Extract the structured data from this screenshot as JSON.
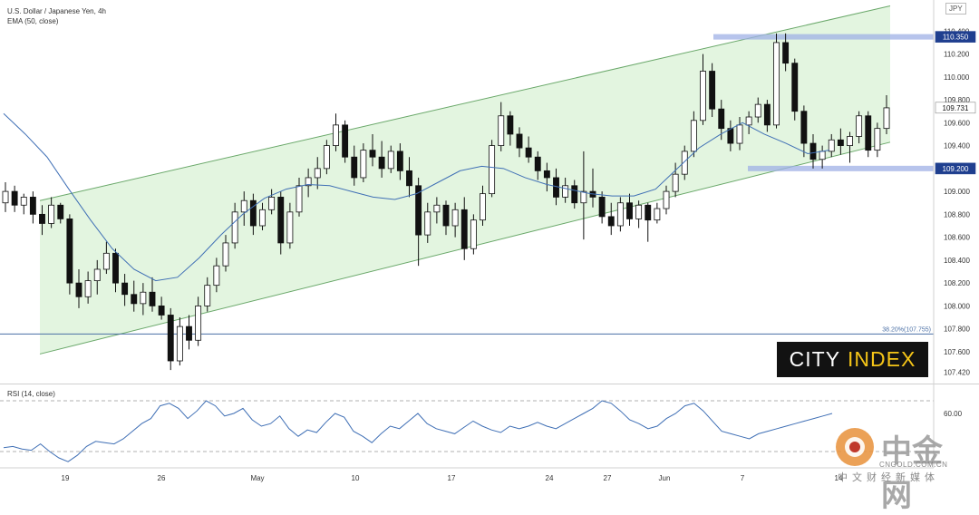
{
  "chart_data": {
    "type": "candlestick",
    "title": "U.S. Dollar / Japanese Yen, 4h",
    "currency": "JPY",
    "indicator_label": "EMA (50, close)",
    "y_ticks": [
      "110.400",
      "110.200",
      "110.000",
      "109.800",
      "109.600",
      "109.400",
      "109.200",
      "109.000",
      "108.800",
      "108.600",
      "108.400",
      "108.200",
      "108.000",
      "107.800",
      "107.600",
      "107.420"
    ],
    "ylim": [
      107.33,
      110.64
    ],
    "x_ticks": [
      "19",
      "26",
      "May",
      "10",
      "17",
      "24",
      "27",
      "Jun",
      "7",
      "14"
    ],
    "price_markers": [
      {
        "label": "110.350",
        "value": 110.35,
        "style": "blue-box"
      },
      {
        "label": "109.200",
        "value": 109.2,
        "style": "blue-box"
      },
      {
        "label": "109.731",
        "value": 109.731,
        "style": "white-box"
      }
    ],
    "fib_line": {
      "label": "38.20%(107.755)",
      "value": 107.755
    },
    "channel": {
      "upper_start": 108.92,
      "upper_end": 110.62,
      "lower_start": 107.58,
      "lower_end": 109.43,
      "color": "#d9f2d6"
    },
    "support_resistance": [
      110.35,
      109.2
    ],
    "ema_50": [
      109.68,
      109.5,
      109.3,
      109.02,
      108.75,
      108.5,
      108.32,
      108.22,
      108.25,
      108.42,
      108.62,
      108.8,
      108.94,
      109.02,
      109.06,
      109.05,
      109.0,
      108.95,
      108.93,
      108.98,
      109.08,
      109.18,
      109.22,
      109.2,
      109.12,
      109.06,
      109.02,
      108.98,
      108.96,
      108.96,
      109.02,
      109.2,
      109.38,
      109.5,
      109.6,
      109.5,
      109.42,
      109.33,
      109.36
    ],
    "rsi": {
      "label": "RSI (14, close)",
      "ticks": [
        "60.00"
      ],
      "upper": 70,
      "lower": 30,
      "range": [
        20,
        80
      ],
      "values": [
        33,
        34,
        32,
        31,
        36,
        30,
        25,
        22,
        27,
        34,
        38,
        37,
        36,
        40,
        46,
        52,
        56,
        66,
        68,
        64,
        56,
        62,
        70,
        66,
        58,
        60,
        64,
        55,
        50,
        52,
        58,
        48,
        42,
        47,
        45,
        53,
        60,
        57,
        46,
        42,
        37,
        44,
        50,
        48,
        54,
        60,
        52,
        48,
        46,
        44,
        49,
        54,
        50,
        47,
        45,
        50,
        48,
        50,
        53,
        50,
        48,
        52,
        56,
        60,
        64,
        70,
        68,
        62,
        55,
        52,
        48,
        50,
        56,
        60,
        66,
        68,
        62,
        54,
        46,
        44,
        42,
        40,
        44,
        46,
        48,
        50,
        52,
        54,
        56,
        58,
        60
      ]
    },
    "candles": [
      [
        108.9,
        109.08,
        108.82,
        109.0
      ],
      [
        109.0,
        109.05,
        108.82,
        108.88
      ],
      [
        108.88,
        108.98,
        108.8,
        108.95
      ],
      [
        108.95,
        109.0,
        108.72,
        108.8
      ],
      [
        108.8,
        108.88,
        108.62,
        108.72
      ],
      [
        108.72,
        108.95,
        108.68,
        108.88
      ],
      [
        108.88,
        108.9,
        108.72,
        108.76
      ],
      [
        108.76,
        108.8,
        108.1,
        108.2
      ],
      [
        108.2,
        108.32,
        107.98,
        108.08
      ],
      [
        108.08,
        108.3,
        108.02,
        108.22
      ],
      [
        108.22,
        108.4,
        108.1,
        108.32
      ],
      [
        108.32,
        108.56,
        108.28,
        108.46
      ],
      [
        108.46,
        108.5,
        108.12,
        108.2
      ],
      [
        108.2,
        108.28,
        108.0,
        108.1
      ],
      [
        108.1,
        108.22,
        107.95,
        108.02
      ],
      [
        108.02,
        108.2,
        107.92,
        108.12
      ],
      [
        108.12,
        108.25,
        107.95,
        108.0
      ],
      [
        108.0,
        108.08,
        107.88,
        107.92
      ],
      [
        107.92,
        107.98,
        107.44,
        107.52
      ],
      [
        107.52,
        107.9,
        107.48,
        107.82
      ],
      [
        107.82,
        107.92,
        107.62,
        107.7
      ],
      [
        107.7,
        108.08,
        107.65,
        108.0
      ],
      [
        108.0,
        108.25,
        107.95,
        108.18
      ],
      [
        108.18,
        108.42,
        108.12,
        108.35
      ],
      [
        108.35,
        108.62,
        108.3,
        108.55
      ],
      [
        108.55,
        108.9,
        108.5,
        108.82
      ],
      [
        108.82,
        109.0,
        108.7,
        108.92
      ],
      [
        108.92,
        108.98,
        108.62,
        108.7
      ],
      [
        108.7,
        108.9,
        108.66,
        108.84
      ],
      [
        108.84,
        109.02,
        108.8,
        108.95
      ],
      [
        108.95,
        109.0,
        108.45,
        108.55
      ],
      [
        108.55,
        108.9,
        108.5,
        108.82
      ],
      [
        108.82,
        109.12,
        108.78,
        109.05
      ],
      [
        109.05,
        109.2,
        108.95,
        109.12
      ],
      [
        109.12,
        109.3,
        109.02,
        109.2
      ],
      [
        109.2,
        109.45,
        109.15,
        109.4
      ],
      [
        109.4,
        109.68,
        109.35,
        109.58
      ],
      [
        109.58,
        109.62,
        109.25,
        109.3
      ],
      [
        109.3,
        109.4,
        109.05,
        109.12
      ],
      [
        109.12,
        109.42,
        109.08,
        109.36
      ],
      [
        109.36,
        109.5,
        109.22,
        109.3
      ],
      [
        109.3,
        109.44,
        109.12,
        109.2
      ],
      [
        109.2,
        109.4,
        109.16,
        109.35
      ],
      [
        109.35,
        109.42,
        109.1,
        109.18
      ],
      [
        109.18,
        109.3,
        108.95,
        109.05
      ],
      [
        109.05,
        109.12,
        108.35,
        108.62
      ],
      [
        108.62,
        108.9,
        108.55,
        108.82
      ],
      [
        108.82,
        108.95,
        108.72,
        108.88
      ],
      [
        108.88,
        108.92,
        108.62,
        108.7
      ],
      [
        108.7,
        108.9,
        108.6,
        108.84
      ],
      [
        108.84,
        108.95,
        108.4,
        108.5
      ],
      [
        108.5,
        108.8,
        108.45,
        108.75
      ],
      [
        108.75,
        109.05,
        108.7,
        108.98
      ],
      [
        108.98,
        109.45,
        108.95,
        109.4
      ],
      [
        109.4,
        109.78,
        109.35,
        109.66
      ],
      [
        109.66,
        109.7,
        109.4,
        109.5
      ],
      [
        109.5,
        109.56,
        109.3,
        109.38
      ],
      [
        109.38,
        109.48,
        109.25,
        109.3
      ],
      [
        109.3,
        109.35,
        109.1,
        109.18
      ],
      [
        109.18,
        109.25,
        109.0,
        109.12
      ],
      [
        109.12,
        109.2,
        108.88,
        108.95
      ],
      [
        108.95,
        109.12,
        108.9,
        109.05
      ],
      [
        109.05,
        109.1,
        108.85,
        108.9
      ],
      [
        108.9,
        109.35,
        108.58,
        109.0
      ],
      [
        109.0,
        109.2,
        108.86,
        108.95
      ],
      [
        108.95,
        109.0,
        108.72,
        108.78
      ],
      [
        108.78,
        108.9,
        108.62,
        108.7
      ],
      [
        108.7,
        108.95,
        108.65,
        108.9
      ],
      [
        108.9,
        108.98,
        108.7,
        108.76
      ],
      [
        108.76,
        108.92,
        108.68,
        108.88
      ],
      [
        108.88,
        108.9,
        108.56,
        108.75
      ],
      [
        108.75,
        108.9,
        108.72,
        108.85
      ],
      [
        108.85,
        109.05,
        108.8,
        109.0
      ],
      [
        109.0,
        109.25,
        108.95,
        109.15
      ],
      [
        109.15,
        109.4,
        109.1,
        109.35
      ],
      [
        109.35,
        109.7,
        109.3,
        109.62
      ],
      [
        109.62,
        110.2,
        109.58,
        110.05
      ],
      [
        110.05,
        110.12,
        109.65,
        109.72
      ],
      [
        109.72,
        109.8,
        109.45,
        109.55
      ],
      [
        109.55,
        109.62,
        109.35,
        109.42
      ],
      [
        109.42,
        109.65,
        109.36,
        109.58
      ],
      [
        109.58,
        109.7,
        109.5,
        109.65
      ],
      [
        109.65,
        109.82,
        109.6,
        109.76
      ],
      [
        109.76,
        109.8,
        109.52,
        109.58
      ],
      [
        109.58,
        110.38,
        109.55,
        110.3
      ],
      [
        110.3,
        110.38,
        110.05,
        110.12
      ],
      [
        110.12,
        110.16,
        109.62,
        109.7
      ],
      [
        109.7,
        109.75,
        109.3,
        109.42
      ],
      [
        109.42,
        109.5,
        109.2,
        109.28
      ],
      [
        109.28,
        109.4,
        109.2,
        109.35
      ],
      [
        109.35,
        109.5,
        109.3,
        109.45
      ],
      [
        109.45,
        109.55,
        109.32,
        109.4
      ],
      [
        109.4,
        109.52,
        109.25,
        109.48
      ],
      [
        109.48,
        109.7,
        109.42,
        109.66
      ],
      [
        109.66,
        109.7,
        109.3,
        109.36
      ],
      [
        109.36,
        109.6,
        109.3,
        109.55
      ],
      [
        109.55,
        109.84,
        109.5,
        109.73
      ]
    ]
  },
  "watermark": {
    "logo_text": "CITY INDEX",
    "site_cn": "中金网",
    "site_url": "CNGOLD.COM.CN",
    "site_sub": "中文财经新媒体"
  }
}
